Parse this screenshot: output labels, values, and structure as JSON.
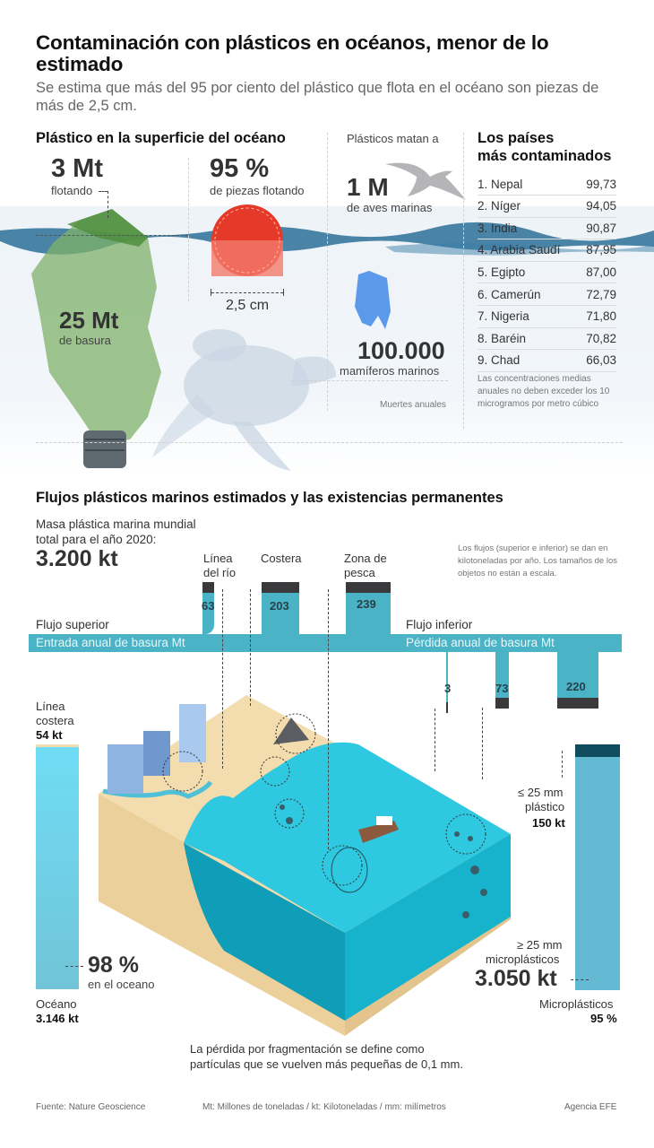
{
  "header": {
    "title": "Contaminación con plásticos en océanos, menor de lo estimado",
    "subtitle": "Se estima que más del 95 por ciento del plástico que flota en el océano son piezas de más de 2,5 cm."
  },
  "surface": {
    "section_title": "Plástico en la superficie del océano",
    "floating_value": "3 Mt",
    "floating_label": "flotando",
    "trash_value": "25 Mt",
    "trash_label": "de basura",
    "pieces_value": "95 %",
    "pieces_label": "de piezas flotando",
    "size_label": "2,5 cm"
  },
  "deaths": {
    "intro": "Plásticos matan a",
    "birds_value": "1 M",
    "birds_label": "de aves marinas",
    "mammals_value": "100.000",
    "mammals_label": "mamíferos marinos",
    "note": "Muertes anuales"
  },
  "countries": {
    "title_line1": "Los países",
    "title_line2": "más contaminados",
    "rows": [
      {
        "name": "1. Nepal",
        "value": "99,73"
      },
      {
        "name": "2. Níger",
        "value": "94,05"
      },
      {
        "name": "3. India",
        "value": "90,87"
      },
      {
        "name": "4. Arabia Saudí",
        "value": "87,95"
      },
      {
        "name": "5. Egipto",
        "value": "87,00"
      },
      {
        "name": "6. Camerún",
        "value": "72,79"
      },
      {
        "name": "7. Nigeria",
        "value": "71,80"
      },
      {
        "name": "8. Baréin",
        "value": "70,82"
      },
      {
        "name": "9. Chad",
        "value": "66,03"
      }
    ],
    "note": "Las concentraciones medias anuales no deben exceder los 10 microgramos por metro cúbico"
  },
  "flows": {
    "section_title": "Flujos plásticos marinos estimados y las existencias permanentes",
    "mass_label_1": "Masa plástica marina mundial",
    "mass_label_2": "total para el año 2020:",
    "mass_value": "3.200 kt",
    "note": "Los flujos (superior e inferior) se dan en kilotoneladas por año. Los tamaños de los objetos no están a escala.",
    "inputs": [
      {
        "label_1": "Línea",
        "label_2": "del río",
        "value": "63"
      },
      {
        "label_1": "Costera",
        "label_2": "",
        "value": "203"
      },
      {
        "label_1": "Zona de",
        "label_2": "pesca",
        "value": "239"
      }
    ],
    "upper_title": "Flujo superior",
    "upper_bar_label": "Entrada anual de basura Mt",
    "lower_title": "Flujo inferior",
    "lower_bar_label": "Pérdida anual de basura Mt",
    "outputs": [
      {
        "value": "3"
      },
      {
        "value": "73"
      },
      {
        "value": "220"
      }
    ]
  },
  "stocks": {
    "coast_label_1": "Línea",
    "coast_label_2": "costera",
    "coast_value": "54 kt",
    "ocean_pct": "98 %",
    "ocean_pct_label": "en el oceano",
    "ocean_label": "Océano",
    "ocean_value": "3.146 kt",
    "small_label_1": "≤ 25 mm",
    "small_label_2": "plástico",
    "small_value": "150 kt",
    "micro_label_1": "≥ 25 mm",
    "micro_label_2": "microplásticos",
    "micro_value": "3.050 kt",
    "micro_title": "Microplásticos",
    "micro_pct": "95 %",
    "fragmentation_note_1": "La pérdida por fragmentación se define como",
    "fragmentation_note_2": "partículas que se vuelven más pequeñas de 0,1 mm."
  },
  "footer": {
    "source": "Fuente: Nature Geoscience",
    "units": "Mt: Millones de toneladas / kt: Kilotoneladas / mm: milímetros",
    "agency": "Agencia EFE"
  },
  "colors": {
    "flow": "#4ab3c6",
    "cap": "#3a3a3c",
    "sand": "#f0d3a2",
    "sea_light": "#2ec8e0",
    "sea_dark": "#0f9db8",
    "red_cap": "#e53a2a",
    "bottle_green": "#7fb26a"
  }
}
